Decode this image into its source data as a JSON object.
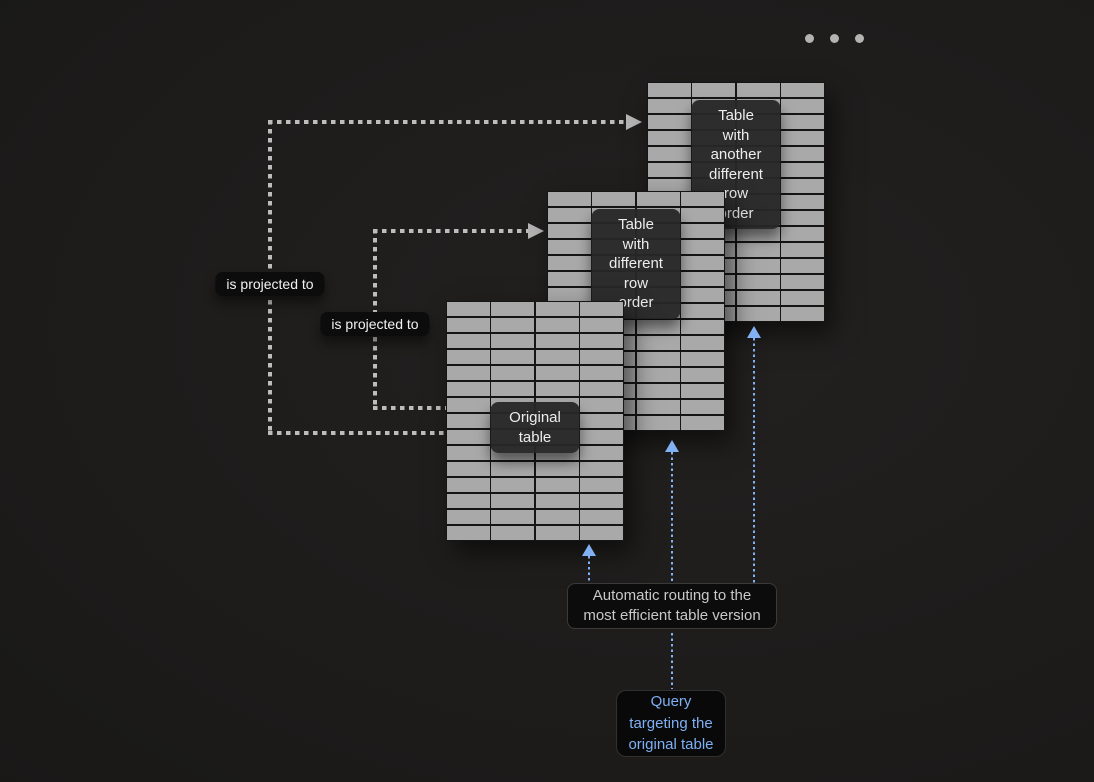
{
  "menu": {
    "dots": 3
  },
  "tables": [
    {
      "name": "table-another-row-order",
      "label": "Table with another\ndifferent row order",
      "cols": 4,
      "rows": 15
    },
    {
      "name": "table-different-row-order",
      "label": "Table with\ndifferent row order",
      "cols": 4,
      "rows": 15
    },
    {
      "name": "table-original",
      "label": "Original table",
      "cols": 4,
      "rows": 15
    }
  ],
  "projections": [
    {
      "label": "is projected to"
    },
    {
      "label": "is projected to"
    }
  ],
  "routing": {
    "label": "Automatic routing to the\nmost efficient table version"
  },
  "query": {
    "label": "Query\ntargeting the\noriginal table"
  },
  "colors": {
    "background": "#1c1b1a",
    "table_fill": "#a9a9a9",
    "grid_line": "#151515",
    "projection_line": "#bdbdbd",
    "routing_line": "#82b1f3",
    "query_text": "#7fb0f4"
  }
}
